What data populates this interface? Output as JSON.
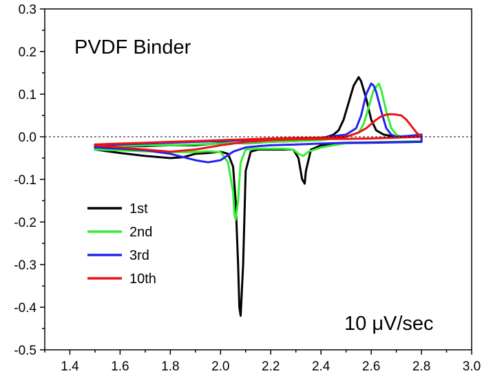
{
  "chart_data": {
    "type": "line",
    "annotation": "PVDF Binder",
    "scan_rate_label": "10 μV/sec",
    "xlabel": "",
    "ylabel": "",
    "xlim": [
      1.3,
      3.0
    ],
    "ylim": [
      -0.5,
      0.3
    ],
    "xticks": [
      "1.4",
      "1.6",
      "1.8",
      "2.0",
      "2.2",
      "2.4",
      "2.6",
      "2.8",
      "3.0"
    ],
    "xtick_values": [
      1.4,
      1.6,
      1.8,
      2.0,
      2.2,
      2.4,
      2.6,
      2.8,
      3.0
    ],
    "yticks": [
      "0.3",
      "0.2",
      "0.1",
      "0.0",
      "-0.1",
      "-0.2",
      "-0.3",
      "-0.4",
      "-0.5"
    ],
    "ytick_values": [
      0.3,
      0.2,
      0.1,
      0.0,
      -0.1,
      -0.2,
      -0.3,
      -0.4,
      -0.5
    ],
    "zero_line": true,
    "grid": false,
    "legend_position": "lower-left",
    "series": [
      {
        "name": "1st",
        "color": "#000000",
        "x": [
          1.5,
          1.6,
          1.7,
          1.8,
          1.85,
          1.9,
          1.95,
          2.0,
          2.03,
          2.05,
          2.06,
          2.07,
          2.075,
          2.08,
          2.09,
          2.1,
          2.12,
          2.15,
          2.2,
          2.25,
          2.29,
          2.31,
          2.325,
          2.335,
          2.34,
          2.36,
          2.4,
          2.45,
          2.5,
          2.8,
          2.8,
          2.75,
          2.7,
          2.65,
          2.62,
          2.6,
          2.58,
          2.56,
          2.55,
          2.53,
          2.51,
          2.49,
          2.47,
          2.45,
          2.4,
          2.3,
          2.2,
          2.1,
          2.0,
          1.9,
          1.8,
          1.7,
          1.6,
          1.5,
          1.5
        ],
        "y": [
          -0.03,
          -0.038,
          -0.045,
          -0.05,
          -0.048,
          -0.04,
          -0.038,
          -0.035,
          -0.04,
          -0.07,
          -0.15,
          -0.3,
          -0.4,
          -0.42,
          -0.3,
          -0.08,
          -0.035,
          -0.03,
          -0.03,
          -0.03,
          -0.03,
          -0.05,
          -0.1,
          -0.11,
          -0.08,
          -0.03,
          -0.02,
          -0.018,
          -0.015,
          -0.012,
          0.005,
          0.0,
          0.0,
          0.005,
          0.015,
          0.04,
          0.09,
          0.13,
          0.14,
          0.12,
          0.08,
          0.04,
          0.015,
          0.005,
          -0.005,
          -0.01,
          -0.012,
          -0.015,
          -0.015,
          -0.02,
          -0.02,
          -0.022,
          -0.022,
          -0.025,
          -0.03
        ]
      },
      {
        "name": "2nd",
        "color": "#33ee33",
        "x": [
          1.5,
          1.6,
          1.7,
          1.8,
          1.9,
          1.95,
          2.0,
          2.03,
          2.05,
          2.055,
          2.06,
          2.07,
          2.08,
          2.1,
          2.15,
          2.2,
          2.25,
          2.29,
          2.31,
          2.33,
          2.35,
          2.4,
          2.45,
          2.5,
          2.8,
          2.8,
          2.75,
          2.72,
          2.7,
          2.68,
          2.66,
          2.64,
          2.63,
          2.61,
          2.59,
          2.57,
          2.55,
          2.5,
          2.4,
          2.3,
          2.2,
          2.1,
          2.0,
          1.9,
          1.8,
          1.7,
          1.6,
          1.5,
          1.5
        ],
        "y": [
          -0.03,
          -0.032,
          -0.034,
          -0.036,
          -0.036,
          -0.034,
          -0.036,
          -0.06,
          -0.13,
          -0.18,
          -0.195,
          -0.15,
          -0.06,
          -0.03,
          -0.028,
          -0.028,
          -0.028,
          -0.03,
          -0.04,
          -0.045,
          -0.035,
          -0.025,
          -0.02,
          -0.015,
          -0.01,
          0.005,
          0.002,
          0.0,
          0.005,
          0.02,
          0.06,
          0.11,
          0.125,
          0.11,
          0.07,
          0.03,
          0.01,
          0.0,
          -0.008,
          -0.01,
          -0.012,
          -0.014,
          -0.016,
          -0.018,
          -0.02,
          -0.02,
          -0.022,
          -0.025,
          -0.03
        ]
      },
      {
        "name": "3rd",
        "color": "#2222ee",
        "x": [
          1.5,
          1.6,
          1.7,
          1.8,
          1.9,
          1.95,
          2.0,
          2.05,
          2.1,
          2.15,
          2.2,
          2.3,
          2.4,
          2.5,
          2.8,
          2.8,
          2.75,
          2.7,
          2.68,
          2.66,
          2.64,
          2.62,
          2.61,
          2.6,
          2.58,
          2.56,
          2.54,
          2.5,
          2.4,
          2.3,
          2.2,
          2.1,
          2.0,
          1.9,
          1.8,
          1.7,
          1.6,
          1.5,
          1.5
        ],
        "y": [
          -0.025,
          -0.028,
          -0.032,
          -0.04,
          -0.055,
          -0.06,
          -0.055,
          -0.035,
          -0.025,
          -0.022,
          -0.02,
          -0.018,
          -0.016,
          -0.014,
          -0.012,
          0.005,
          0.002,
          0.0,
          0.005,
          0.02,
          0.06,
          0.105,
          0.12,
          0.125,
          0.1,
          0.05,
          0.02,
          0.005,
          -0.002,
          -0.004,
          -0.006,
          -0.008,
          -0.01,
          -0.012,
          -0.014,
          -0.016,
          -0.018,
          -0.02,
          -0.025
        ]
      },
      {
        "name": "10th",
        "color": "#ee1111",
        "x": [
          1.5,
          1.6,
          1.7,
          1.8,
          1.9,
          2.0,
          2.1,
          2.2,
          2.3,
          2.4,
          2.5,
          2.6,
          2.7,
          2.8,
          2.8,
          2.78,
          2.76,
          2.74,
          2.72,
          2.7,
          2.68,
          2.66,
          2.64,
          2.62,
          2.6,
          2.58,
          2.55,
          2.5,
          2.4,
          2.3,
          2.2,
          2.1,
          2.0,
          1.9,
          1.8,
          1.7,
          1.6,
          1.5,
          1.5
        ],
        "y": [
          -0.02,
          -0.025,
          -0.03,
          -0.035,
          -0.03,
          -0.02,
          -0.012,
          -0.008,
          -0.006,
          -0.005,
          -0.005,
          -0.004,
          -0.002,
          0.0,
          0.0,
          0.01,
          0.025,
          0.04,
          0.05,
          0.052,
          0.053,
          0.052,
          0.048,
          0.04,
          0.03,
          0.02,
          0.01,
          0.0,
          -0.002,
          -0.003,
          -0.004,
          -0.006,
          -0.008,
          -0.01,
          -0.012,
          -0.014,
          -0.016,
          -0.018,
          -0.02
        ]
      }
    ]
  }
}
